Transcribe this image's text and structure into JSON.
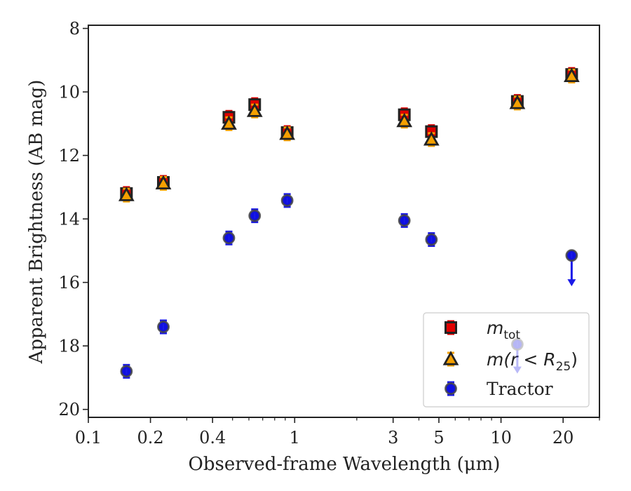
{
  "chart_data": {
    "type": "scatter",
    "xlabel": "Observed-frame Wavelength (μm)",
    "ylabel": "Apparent Brightness (AB mag)",
    "xscale": "log",
    "xlim": [
      0.1,
      30
    ],
    "ylim": [
      20.25,
      7.9
    ],
    "y_inverted": true,
    "grid": false,
    "legend_position": "lower-right",
    "x_ticks": [
      {
        "value": 0.1,
        "label": "0.1"
      },
      {
        "value": 0.2,
        "label": "0.2"
      },
      {
        "value": 0.4,
        "label": "0.4"
      },
      {
        "value": 1,
        "label": "1"
      },
      {
        "value": 3,
        "label": "3"
      },
      {
        "value": 5,
        "label": "5"
      },
      {
        "value": 10,
        "label": "10"
      },
      {
        "value": 20,
        "label": "20"
      }
    ],
    "y_ticks": [
      {
        "value": 8,
        "label": "8"
      },
      {
        "value": 10,
        "label": "10"
      },
      {
        "value": 12,
        "label": "12"
      },
      {
        "value": 14,
        "label": "14"
      },
      {
        "value": 16,
        "label": "16"
      },
      {
        "value": 18,
        "label": "18"
      },
      {
        "value": 20,
        "label": "20"
      }
    ],
    "series": [
      {
        "name": "m_tot",
        "legend_label": "m",
        "legend_sub": "tot",
        "marker": "square",
        "face_color": "#e00000",
        "edge_color": "#222222",
        "error_color": "#e00000",
        "points": [
          {
            "x": 0.153,
            "y": 13.2
          },
          {
            "x": 0.231,
            "y": 12.85
          },
          {
            "x": 0.48,
            "y": 10.8
          },
          {
            "x": 0.64,
            "y": 10.4
          },
          {
            "x": 0.92,
            "y": 11.28
          },
          {
            "x": 3.4,
            "y": 10.72
          },
          {
            "x": 4.6,
            "y": 11.25
          },
          {
            "x": 12.0,
            "y": 10.3
          },
          {
            "x": 22.0,
            "y": 9.45
          }
        ]
      },
      {
        "name": "m(r < R25)",
        "legend_label": "m(r < R",
        "legend_sub": "25",
        "legend_suffix": ")",
        "marker": "triangle",
        "face_color": "#f5a000",
        "edge_color": "#222222",
        "error_color": "#f5a000",
        "points": [
          {
            "x": 0.153,
            "y": 13.25
          },
          {
            "x": 0.231,
            "y": 12.88
          },
          {
            "x": 0.48,
            "y": 11.0
          },
          {
            "x": 0.64,
            "y": 10.6
          },
          {
            "x": 0.92,
            "y": 11.32
          },
          {
            "x": 3.4,
            "y": 10.92
          },
          {
            "x": 4.6,
            "y": 11.5
          },
          {
            "x": 12.0,
            "y": 10.35
          },
          {
            "x": 22.0,
            "y": 9.5
          }
        ]
      },
      {
        "name": "Tractor",
        "legend_label": "Tractor",
        "marker": "circle",
        "face_color": "#1010e0",
        "edge_color": "#444444",
        "error_color": "#1a1ae8",
        "points": [
          {
            "x": 0.153,
            "y": 18.8
          },
          {
            "x": 0.231,
            "y": 17.4
          },
          {
            "x": 0.48,
            "y": 14.6
          },
          {
            "x": 0.64,
            "y": 13.9
          },
          {
            "x": 0.92,
            "y": 13.42
          },
          {
            "x": 3.4,
            "y": 14.05
          },
          {
            "x": 4.6,
            "y": 14.65
          },
          {
            "x": 12.0,
            "y": 17.95,
            "upper_limit": true,
            "faded": true,
            "arrow_to": 18.85
          },
          {
            "x": 22.0,
            "y": 15.15,
            "upper_limit": true,
            "arrow_to": 16.1
          }
        ]
      }
    ]
  }
}
